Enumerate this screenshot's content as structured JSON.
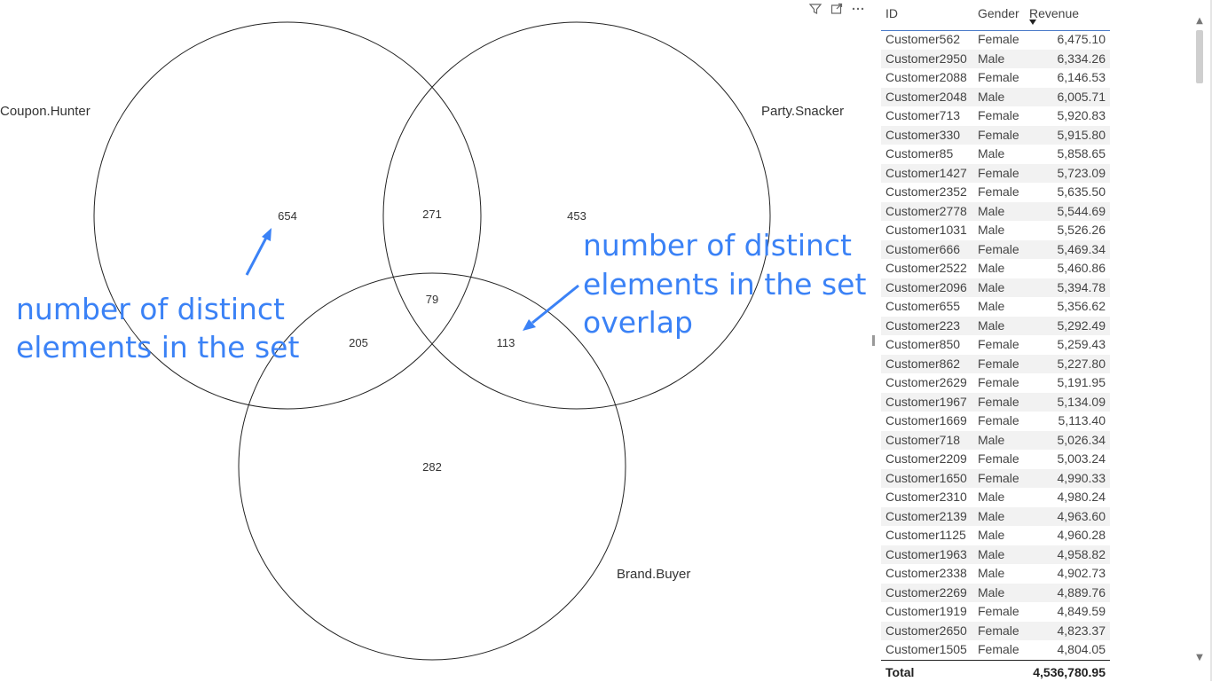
{
  "venn": {
    "sets": [
      "Coupon.Hunter",
      "Party.Snacker",
      "Brand.Buyer"
    ],
    "counts": {
      "coupon_only": "654",
      "coupon_party": "271",
      "party_only": "453",
      "all_three": "79",
      "coupon_brand": "205",
      "party_brand": "113",
      "brand_only": "282"
    },
    "annotations": {
      "set_line1": "number of distinct",
      "set_line2": "elements in the set",
      "overlap_line1": "number of distinct",
      "overlap_line2": "elements in the set",
      "overlap_line3": "overlap"
    },
    "annotation_color": "#3b82f6"
  },
  "header_icons": [
    "filter-icon",
    "focus-mode-icon",
    "more-options-icon"
  ],
  "table": {
    "columns": [
      "ID",
      "Gender",
      "Revenue"
    ],
    "sorted_column": "Revenue",
    "sort_direction": "descending",
    "rows": [
      [
        "Customer562",
        "Female",
        "6,475.10"
      ],
      [
        "Customer2950",
        "Male",
        "6,334.26"
      ],
      [
        "Customer2088",
        "Female",
        "6,146.53"
      ],
      [
        "Customer2048",
        "Male",
        "6,005.71"
      ],
      [
        "Customer713",
        "Female",
        "5,920.83"
      ],
      [
        "Customer330",
        "Female",
        "5,915.80"
      ],
      [
        "Customer85",
        "Male",
        "5,858.65"
      ],
      [
        "Customer1427",
        "Female",
        "5,723.09"
      ],
      [
        "Customer2352",
        "Female",
        "5,635.50"
      ],
      [
        "Customer2778",
        "Male",
        "5,544.69"
      ],
      [
        "Customer1031",
        "Male",
        "5,526.26"
      ],
      [
        "Customer666",
        "Female",
        "5,469.34"
      ],
      [
        "Customer2522",
        "Male",
        "5,460.86"
      ],
      [
        "Customer2096",
        "Male",
        "5,394.78"
      ],
      [
        "Customer655",
        "Male",
        "5,356.62"
      ],
      [
        "Customer223",
        "Male",
        "5,292.49"
      ],
      [
        "Customer850",
        "Female",
        "5,259.43"
      ],
      [
        "Customer862",
        "Female",
        "5,227.80"
      ],
      [
        "Customer2629",
        "Female",
        "5,191.95"
      ],
      [
        "Customer1967",
        "Female",
        "5,134.09"
      ],
      [
        "Customer1669",
        "Female",
        "5,113.40"
      ],
      [
        "Customer718",
        "Male",
        "5,026.34"
      ],
      [
        "Customer2209",
        "Female",
        "5,003.24"
      ],
      [
        "Customer1650",
        "Female",
        "4,990.33"
      ],
      [
        "Customer2310",
        "Male",
        "4,980.24"
      ],
      [
        "Customer2139",
        "Male",
        "4,963.60"
      ],
      [
        "Customer1125",
        "Male",
        "4,960.28"
      ],
      [
        "Customer1963",
        "Male",
        "4,958.82"
      ],
      [
        "Customer2338",
        "Male",
        "4,902.73"
      ],
      [
        "Customer2269",
        "Male",
        "4,889.76"
      ],
      [
        "Customer1919",
        "Female",
        "4,849.59"
      ],
      [
        "Customer2650",
        "Female",
        "4,823.37"
      ],
      [
        "Customer1505",
        "Female",
        "4,804.05"
      ]
    ],
    "total_label": "Total",
    "total_value": "4,536,780.95"
  }
}
